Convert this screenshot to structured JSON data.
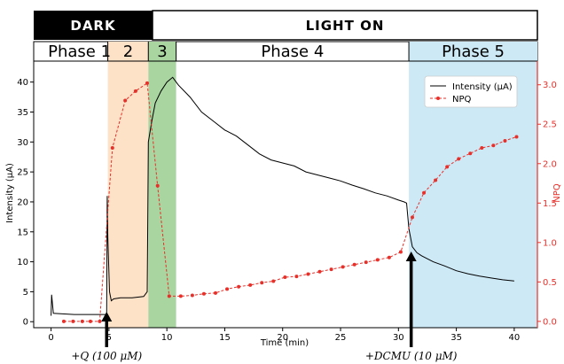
{
  "banner": {
    "dark_label": "DARK",
    "light_label": "LIGHT ON",
    "dark_color": "#000000",
    "light_color": "#ffffff"
  },
  "phases": [
    {
      "label": "Phase 1",
      "x0": 0,
      "x1": 4.9,
      "color": null
    },
    {
      "label": "2",
      "x0": 4.9,
      "x1": 8.4,
      "color": "#fde2c8"
    },
    {
      "label": "3",
      "x0": 8.4,
      "x1": 10.8,
      "color": "#a8d5a0"
    },
    {
      "label": "Phase 4",
      "x0": 10.8,
      "x1": 30.9,
      "color": null
    },
    {
      "label": "Phase 5",
      "x0": 30.9,
      "x1": 42,
      "color": "#cde9f6"
    }
  ],
  "annotations": [
    {
      "text": "+Q (100 μM)",
      "x": 4.8
    },
    {
      "text": "+DCMU (10 μM)",
      "x": 31.1
    }
  ],
  "chart_data": {
    "type": "line",
    "xlabel": "Time (min)",
    "ylabel_left": "Intensity (μA)",
    "ylabel_right": "NPQ",
    "xlim": [
      -1.5,
      42
    ],
    "ylim_left": [
      -1,
      43.5
    ],
    "ylim_right": [
      -0.08,
      3.3
    ],
    "x_ticks": [
      0,
      5,
      10,
      15,
      20,
      25,
      30,
      35,
      40
    ],
    "y_ticks_left": [
      0,
      5,
      10,
      15,
      20,
      25,
      30,
      35,
      40
    ],
    "y_ticks_right": [
      0.0,
      0.5,
      1.0,
      1.5,
      2.0,
      2.5,
      3.0
    ],
    "right_axis_color": "#e8302a",
    "legend": {
      "position": "top-right",
      "entries": [
        "Intensity (μA)",
        "NPQ"
      ]
    },
    "series": [
      {
        "name": "Intensity (μA)",
        "color": "#000000",
        "axis": "left",
        "style": "solid",
        "x": [
          0,
          0.05,
          0.2,
          1,
          2,
          3,
          4,
          4.8,
          4.85,
          4.9,
          5.05,
          5.2,
          5.4,
          6,
          7,
          8,
          8.3,
          8.35,
          8.4,
          8.7,
          9,
          9.5,
          10,
          10.5,
          11,
          12,
          13,
          14,
          15,
          16,
          17,
          18,
          19,
          20,
          21,
          22,
          23,
          24,
          25,
          26,
          27,
          28,
          29,
          30,
          30.5,
          30.7,
          30.9,
          31.2,
          31.6,
          32,
          33,
          34,
          35,
          36,
          37,
          38,
          39,
          40
        ],
        "y": [
          1.0,
          4.5,
          1.4,
          1.3,
          1.2,
          1.2,
          1.2,
          1.2,
          21.0,
          14.0,
          5.0,
          3.5,
          3.8,
          4.0,
          4.0,
          4.2,
          5.0,
          16.0,
          30.0,
          33.5,
          36.5,
          38.5,
          40.0,
          40.8,
          39.5,
          37.5,
          35.0,
          33.5,
          32.0,
          31.0,
          29.5,
          28.0,
          27.0,
          26.5,
          26.0,
          25.0,
          24.5,
          24.0,
          23.5,
          22.8,
          22.2,
          21.5,
          21.0,
          20.3,
          20.0,
          19.8,
          15.5,
          12.5,
          11.5,
          11.0,
          10.0,
          9.3,
          8.5,
          8.0,
          7.6,
          7.3,
          7.0,
          6.8
        ]
      },
      {
        "name": "NPQ",
        "color": "#e8302a",
        "axis": "right",
        "style": "dashed",
        "x": [
          1.1,
          1.9,
          2.7,
          3.4,
          4.2,
          5.3,
          6.4,
          7.3,
          8.3,
          9.2,
          10.2,
          11.2,
          12.2,
          13.2,
          14.2,
          15.2,
          16.2,
          17.2,
          18.2,
          19.2,
          20.2,
          21.2,
          22.2,
          23.2,
          24.2,
          25.2,
          26.2,
          27.2,
          28.2,
          29.2,
          30.2,
          31.2,
          32.2,
          33.2,
          34.2,
          35.2,
          36.2,
          37.2,
          38.2,
          39.2,
          40.2
        ],
        "y": [
          0.0,
          0.0,
          0.0,
          0.0,
          0.0,
          2.2,
          2.8,
          2.92,
          3.02,
          1.72,
          0.32,
          0.32,
          0.33,
          0.35,
          0.36,
          0.41,
          0.44,
          0.46,
          0.49,
          0.51,
          0.56,
          0.57,
          0.6,
          0.63,
          0.66,
          0.69,
          0.72,
          0.75,
          0.78,
          0.81,
          0.88,
          1.32,
          1.63,
          1.79,
          1.96,
          2.06,
          2.13,
          2.2,
          2.23,
          2.29,
          2.34
        ]
      }
    ]
  }
}
